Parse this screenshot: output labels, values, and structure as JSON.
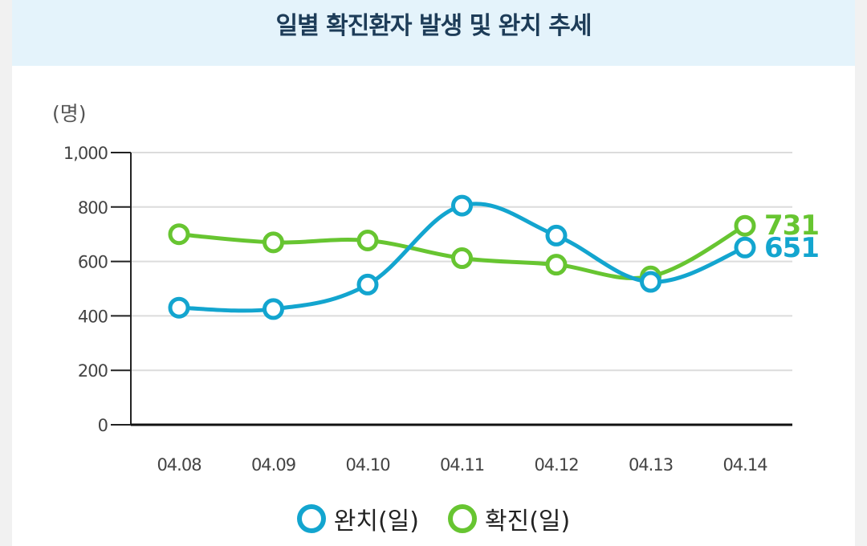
{
  "title": "일별 확진환자 발생 및 완치 추세",
  "chart_data": {
    "type": "line",
    "unit_label": "(명)",
    "categories": [
      "04.08",
      "04.09",
      "04.10",
      "04.11",
      "04.12",
      "04.13",
      "04.14"
    ],
    "ylim": [
      0,
      1000
    ],
    "yticks": [
      "0",
      "200",
      "400",
      "600",
      "800",
      "1,000"
    ],
    "grid": true,
    "legend_position": "bottom",
    "series": [
      {
        "name": "완치(일)",
        "color": "#13a5cf",
        "values": [
          430,
          425,
          515,
          805,
          695,
          525,
          651
        ],
        "end_label": "651"
      },
      {
        "name": "확진(일)",
        "color": "#67c531",
        "values": [
          700,
          670,
          677,
          612,
          588,
          545,
          731
        ],
        "end_label": "731"
      }
    ]
  }
}
